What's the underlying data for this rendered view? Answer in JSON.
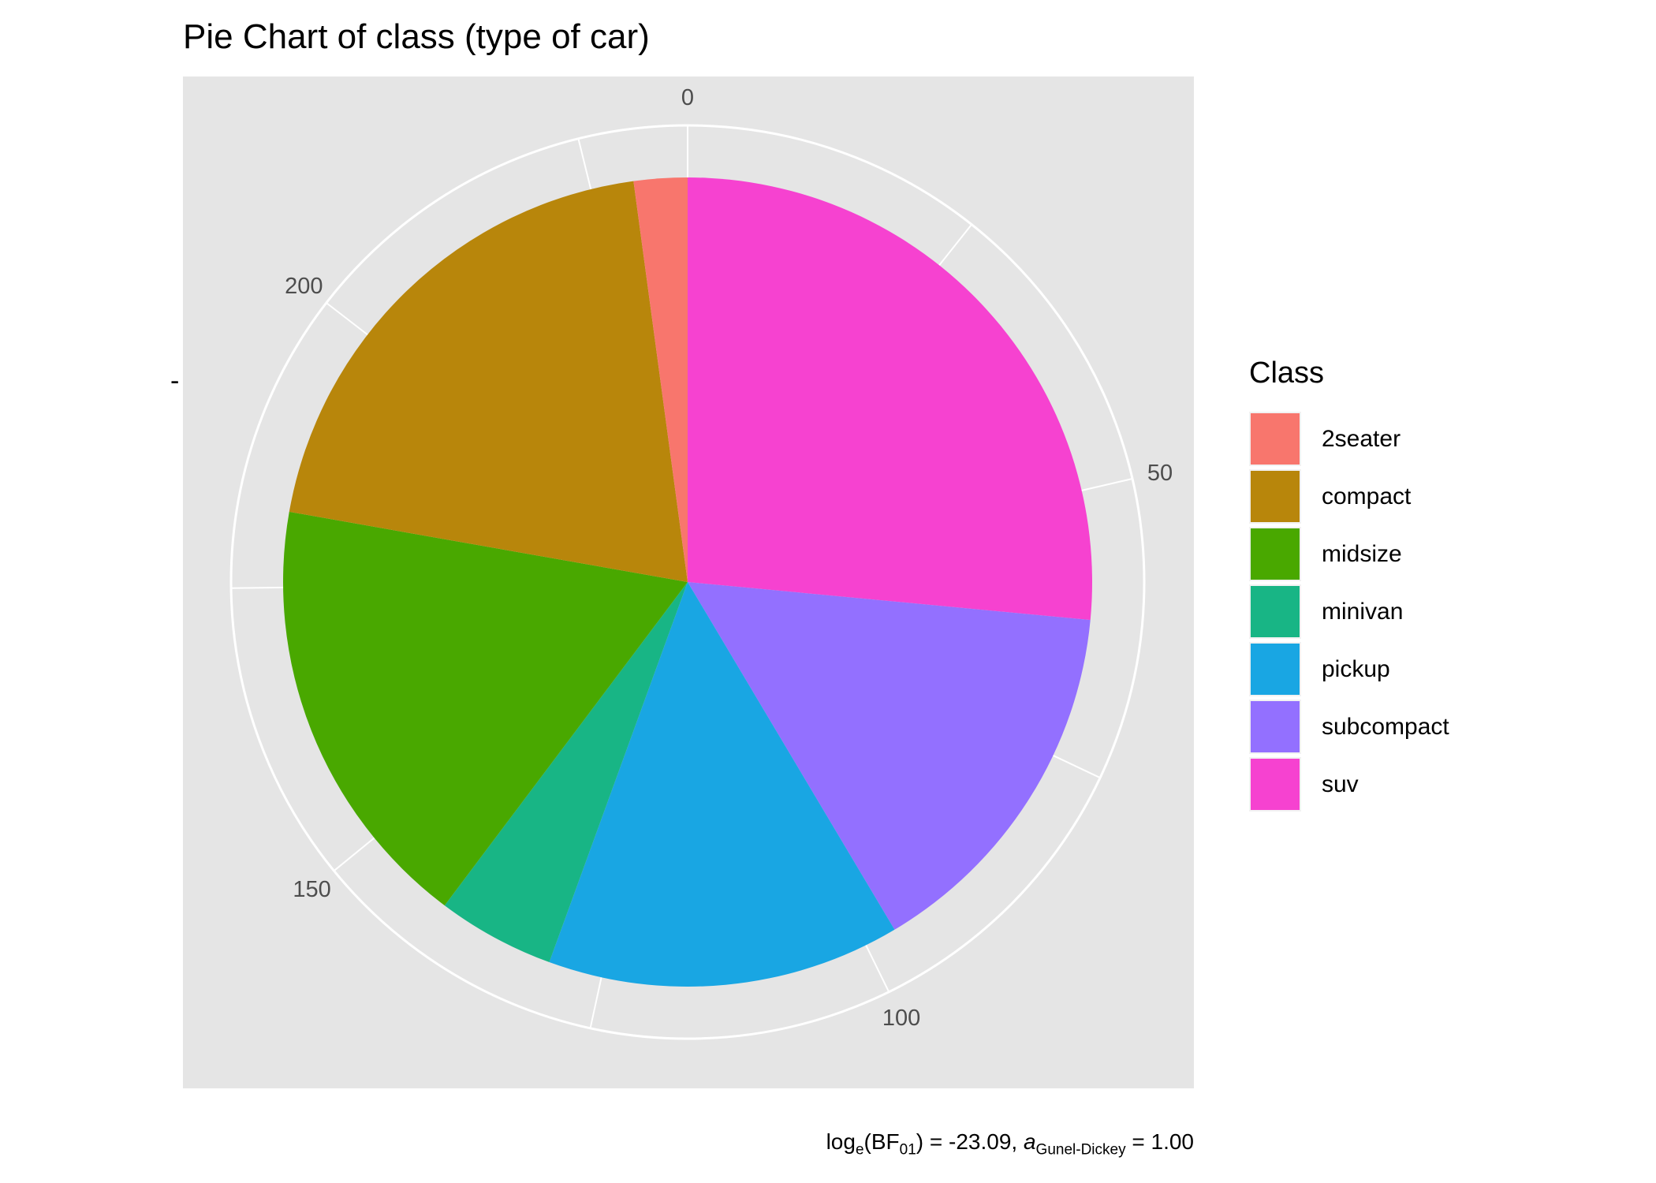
{
  "chart_data": {
    "type": "pie",
    "title": "Pie Chart of class (type of car)",
    "categories": [
      "2seater",
      "compact",
      "midsize",
      "minivan",
      "pickup",
      "subcompact",
      "suv"
    ],
    "values": [
      5,
      47,
      41,
      11,
      33,
      35,
      62
    ],
    "colors": {
      "2seater": "#F8766D",
      "compact": "#B8860B",
      "midsize": "#49A800",
      "minivan": "#18B585",
      "pickup": "#19A6E3",
      "subcompact": "#9370FF",
      "suv": "#F642D0"
    },
    "slice_order_clockwise_from_top": [
      "suv",
      "subcompact",
      "pickup",
      "minivan",
      "midsize",
      "compact",
      "2seater"
    ],
    "theta_axis": {
      "range": [
        0,
        234
      ],
      "tick_labels": [
        "0",
        "50",
        "100",
        "150",
        "200"
      ],
      "ticks": [
        0,
        50,
        100,
        150,
        200
      ],
      "minor_ticks": [
        25,
        75,
        125,
        175,
        225
      ]
    },
    "y_axis_tick_label": "-",
    "legend": {
      "title": "Class",
      "position": "right"
    },
    "panel_background": "#E5E5E5",
    "grid": true,
    "caption": {
      "prefix": "log",
      "sub1": "e",
      "bf": "(BF",
      "sub2": "01",
      "mid": ") = -23.09, ",
      "a": "a",
      "sub3": "Gunel-Dickey",
      "suffix": " = 1.00"
    }
  }
}
